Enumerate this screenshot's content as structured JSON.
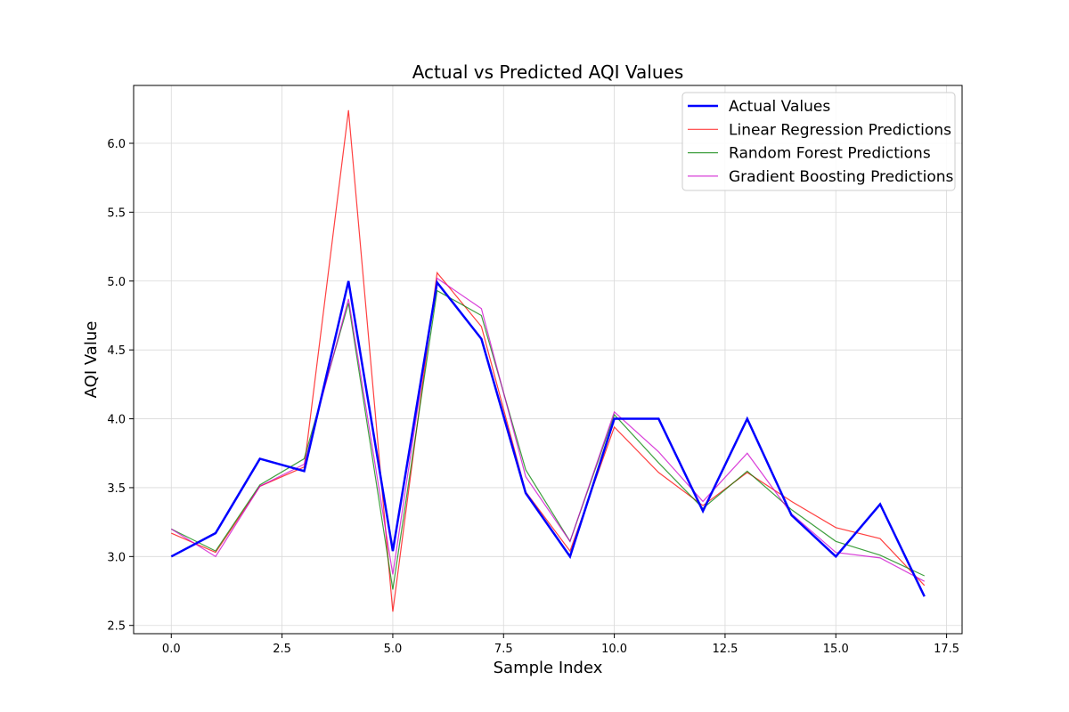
{
  "chart_data": {
    "type": "line",
    "title": "Actual vs Predicted AQI Values",
    "xlabel": "Sample Index",
    "ylabel": "AQI Value",
    "xlim": [
      -0.85,
      17.85
    ],
    "ylim": [
      2.44,
      6.42
    ],
    "x_ticks": [
      0.0,
      2.5,
      5.0,
      7.5,
      10.0,
      12.5,
      15.0,
      17.5
    ],
    "x_tick_labels": [
      "0.0",
      "2.5",
      "5.0",
      "7.5",
      "10.0",
      "12.5",
      "15.0",
      "17.5"
    ],
    "y_ticks": [
      2.5,
      3.0,
      3.5,
      4.0,
      4.5,
      5.0,
      5.5,
      6.0
    ],
    "y_tick_labels": [
      "2.5",
      "3.0",
      "3.5",
      "4.0",
      "4.5",
      "5.0",
      "5.5",
      "6.0"
    ],
    "grid": true,
    "legend_position": "top-right",
    "x": [
      0,
      1,
      2,
      3,
      4,
      5,
      6,
      7,
      8,
      9,
      10,
      11,
      12,
      13,
      14,
      15,
      16,
      17
    ],
    "series": [
      {
        "name": "Actual Values",
        "color": "#0000ff",
        "values": [
          3.0,
          3.17,
          3.71,
          3.62,
          5.0,
          3.04,
          4.99,
          4.58,
          3.46,
          3.0,
          4.0,
          4.0,
          3.33,
          4.0,
          3.3,
          3.0,
          3.38,
          2.71
        ]
      },
      {
        "name": "Linear Regression Predictions",
        "color": "#ff0000",
        "values": [
          3.17,
          3.03,
          3.51,
          3.65,
          6.24,
          2.6,
          5.06,
          4.67,
          3.47,
          3.04,
          3.94,
          3.61,
          3.37,
          3.61,
          3.4,
          3.21,
          3.13,
          2.79
        ]
      },
      {
        "name": "Random Forest Predictions",
        "color": "#008000",
        "values": [
          3.2,
          3.04,
          3.52,
          3.71,
          4.84,
          2.76,
          4.93,
          4.75,
          3.63,
          3.11,
          4.03,
          3.68,
          3.35,
          3.62,
          3.34,
          3.11,
          3.01,
          2.86
        ]
      },
      {
        "name": "Gradient Boosting Predictions",
        "color": "#cc00cc",
        "values": [
          3.2,
          3.0,
          3.51,
          3.67,
          4.87,
          2.87,
          5.02,
          4.8,
          3.58,
          3.11,
          4.05,
          3.76,
          3.4,
          3.75,
          3.31,
          3.03,
          2.99,
          2.82
        ]
      }
    ]
  }
}
